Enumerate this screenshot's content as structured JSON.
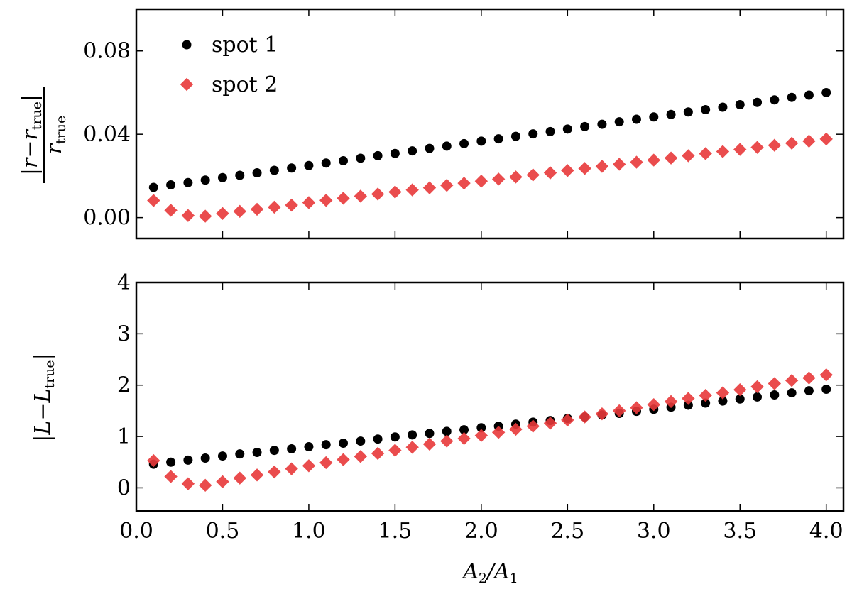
{
  "chart_data": [
    {
      "type": "scatter",
      "panel": "top",
      "ylabel": {
        "numerator": "|r−r",
        "numerator_sub": "true",
        "numerator_end": "|",
        "denominator": "r",
        "denominator_sub": "true"
      },
      "xlim": [
        0.0,
        4.1
      ],
      "ylim": [
        -0.01,
        0.1
      ],
      "yticks": [
        0.0,
        0.04,
        0.08
      ],
      "ytick_labels": [
        "0.00",
        "0.04",
        "0.08"
      ],
      "x": [
        0.1,
        0.2,
        0.3,
        0.4,
        0.5,
        0.6,
        0.7,
        0.8,
        0.9,
        1.0,
        1.1,
        1.2,
        1.3,
        1.4,
        1.5,
        1.6,
        1.7,
        1.8,
        1.9,
        2.0,
        2.1,
        2.2,
        2.3,
        2.4,
        2.5,
        2.6,
        2.7,
        2.8,
        2.9,
        3.0,
        3.1,
        3.2,
        3.3,
        3.4,
        3.5,
        3.6,
        3.7,
        3.8,
        3.9,
        4.0
      ],
      "series": [
        {
          "name": "spot 1",
          "marker": "circle",
          "color": "#000000",
          "values": [
            0.0145,
            0.0157,
            0.0168,
            0.018,
            0.0192,
            0.0203,
            0.0215,
            0.0227,
            0.0238,
            0.025,
            0.0262,
            0.0273,
            0.0285,
            0.0297,
            0.0308,
            0.032,
            0.0332,
            0.0343,
            0.0355,
            0.0367,
            0.0378,
            0.039,
            0.0402,
            0.0413,
            0.0425,
            0.0437,
            0.0448,
            0.046,
            0.0472,
            0.0483,
            0.0495,
            0.0507,
            0.0518,
            0.053,
            0.0542,
            0.0553,
            0.0565,
            0.0577,
            0.0588,
            0.06
          ]
        },
        {
          "name": "spot 2",
          "marker": "diamond",
          "color": "#e8393a",
          "values": [
            0.0082,
            0.0035,
            0.001,
            0.0007,
            0.002,
            0.003,
            0.004,
            0.005,
            0.006,
            0.0072,
            0.0083,
            0.0093,
            0.0103,
            0.0113,
            0.0123,
            0.0133,
            0.0143,
            0.0155,
            0.0165,
            0.0175,
            0.0185,
            0.0195,
            0.0205,
            0.0215,
            0.0226,
            0.0236,
            0.0246,
            0.0256,
            0.0266,
            0.0276,
            0.0286,
            0.0297,
            0.0307,
            0.0317,
            0.0327,
            0.0337,
            0.0347,
            0.0357,
            0.0367,
            0.0377
          ]
        }
      ],
      "legend": {
        "placement": "top-left",
        "entries": [
          "spot 1",
          "spot 2"
        ]
      }
    },
    {
      "type": "scatter",
      "panel": "bottom",
      "xlabel": {
        "main": "A",
        "sub1": "2",
        "slash": "/A",
        "sub2": "1"
      },
      "ylabel": {
        "main": "|L−L",
        "sub": "true",
        "end": "|"
      },
      "xlim": [
        0.0,
        4.1
      ],
      "ylim": [
        -0.45,
        4.0
      ],
      "xticks": [
        0.0,
        0.5,
        1.0,
        1.5,
        2.0,
        2.5,
        3.0,
        3.5,
        4.0
      ],
      "xtick_labels": [
        "0.0",
        "0.5",
        "1.0",
        "1.5",
        "2.0",
        "2.5",
        "3.0",
        "3.5",
        "4.0"
      ],
      "yticks": [
        0,
        1,
        2,
        3,
        4
      ],
      "ytick_labels": [
        "0",
        "1",
        "2",
        "3",
        "4"
      ],
      "x": [
        0.1,
        0.2,
        0.3,
        0.4,
        0.5,
        0.6,
        0.7,
        0.8,
        0.9,
        1.0,
        1.1,
        1.2,
        1.3,
        1.4,
        1.5,
        1.6,
        1.7,
        1.8,
        1.9,
        2.0,
        2.1,
        2.2,
        2.3,
        2.4,
        2.5,
        2.6,
        2.7,
        2.8,
        2.9,
        3.0,
        3.1,
        3.2,
        3.3,
        3.4,
        3.5,
        3.6,
        3.7,
        3.8,
        3.9,
        4.0
      ],
      "series": [
        {
          "name": "spot 1",
          "marker": "circle",
          "color": "#000000",
          "values": [
            0.46,
            0.5,
            0.54,
            0.58,
            0.62,
            0.66,
            0.69,
            0.73,
            0.76,
            0.8,
            0.84,
            0.87,
            0.91,
            0.95,
            0.99,
            1.03,
            1.06,
            1.1,
            1.13,
            1.17,
            1.2,
            1.24,
            1.28,
            1.31,
            1.35,
            1.38,
            1.42,
            1.45,
            1.49,
            1.53,
            1.57,
            1.61,
            1.65,
            1.69,
            1.73,
            1.77,
            1.81,
            1.85,
            1.89,
            1.92
          ]
        },
        {
          "name": "spot 2",
          "marker": "diamond",
          "color": "#e8393a",
          "values": [
            0.53,
            0.22,
            0.08,
            0.05,
            0.12,
            0.19,
            0.25,
            0.31,
            0.37,
            0.43,
            0.49,
            0.55,
            0.61,
            0.67,
            0.73,
            0.79,
            0.85,
            0.91,
            0.96,
            1.02,
            1.08,
            1.14,
            1.2,
            1.26,
            1.32,
            1.38,
            1.44,
            1.5,
            1.56,
            1.62,
            1.68,
            1.74,
            1.8,
            1.85,
            1.91,
            1.97,
            2.03,
            2.09,
            2.14,
            2.2
          ]
        }
      ]
    }
  ]
}
